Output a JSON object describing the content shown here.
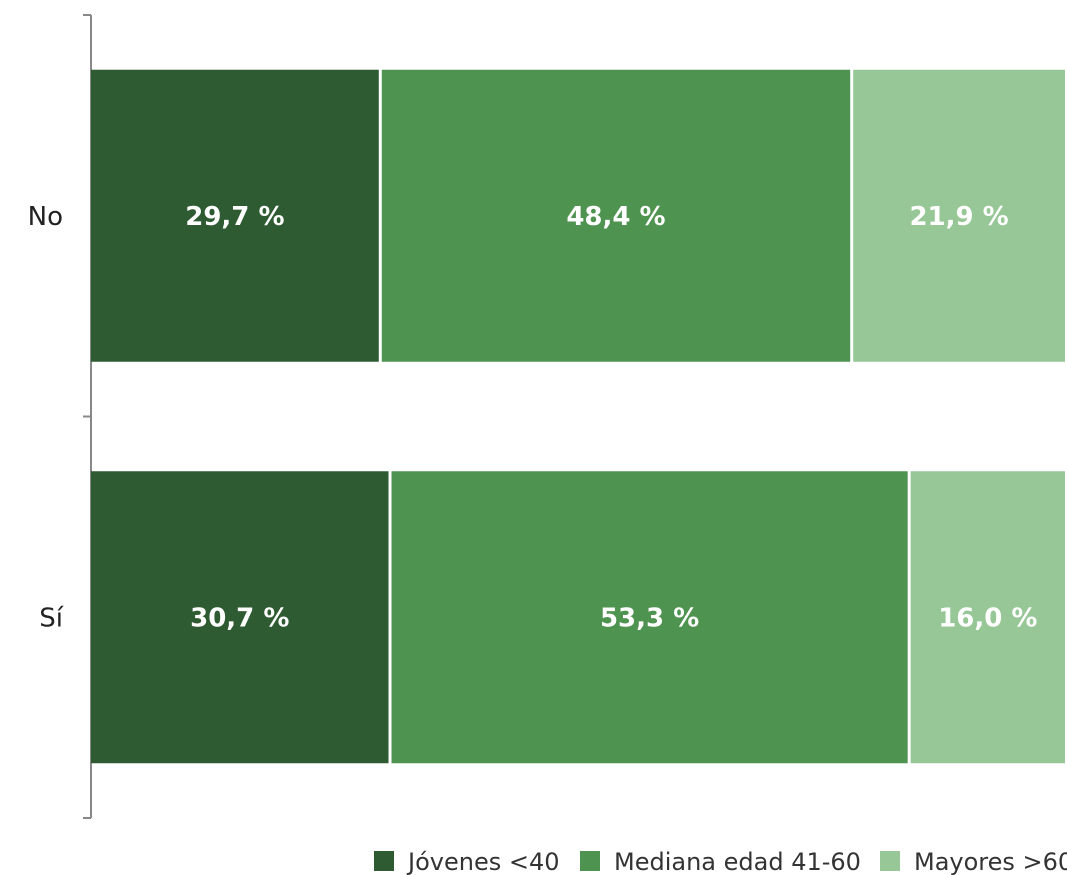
{
  "chart_data": {
    "type": "bar",
    "orientation": "horizontal",
    "stacked": "percent",
    "title": "",
    "xlabel": "",
    "ylabel": "",
    "xlim": [
      0,
      100
    ],
    "grid": false,
    "legend": "bottom-right",
    "categories": [
      "No",
      "Sí"
    ],
    "series": [
      {
        "name": "Jóvenes <40",
        "color": "#2f5b33",
        "values": [
          29.7,
          30.7
        ],
        "labels": [
          "29,7 %",
          "30,7 %"
        ]
      },
      {
        "name": "Mediana edad 41-60",
        "color": "#4f9350",
        "values": [
          48.4,
          53.3
        ],
        "labels": [
          "48,4 %",
          "53,3 %"
        ]
      },
      {
        "name": "Mayores >60",
        "color": "#97c796",
        "values": [
          21.9,
          16.0
        ],
        "labels": [
          "21,9 %",
          "16,0 %"
        ]
      }
    ]
  }
}
